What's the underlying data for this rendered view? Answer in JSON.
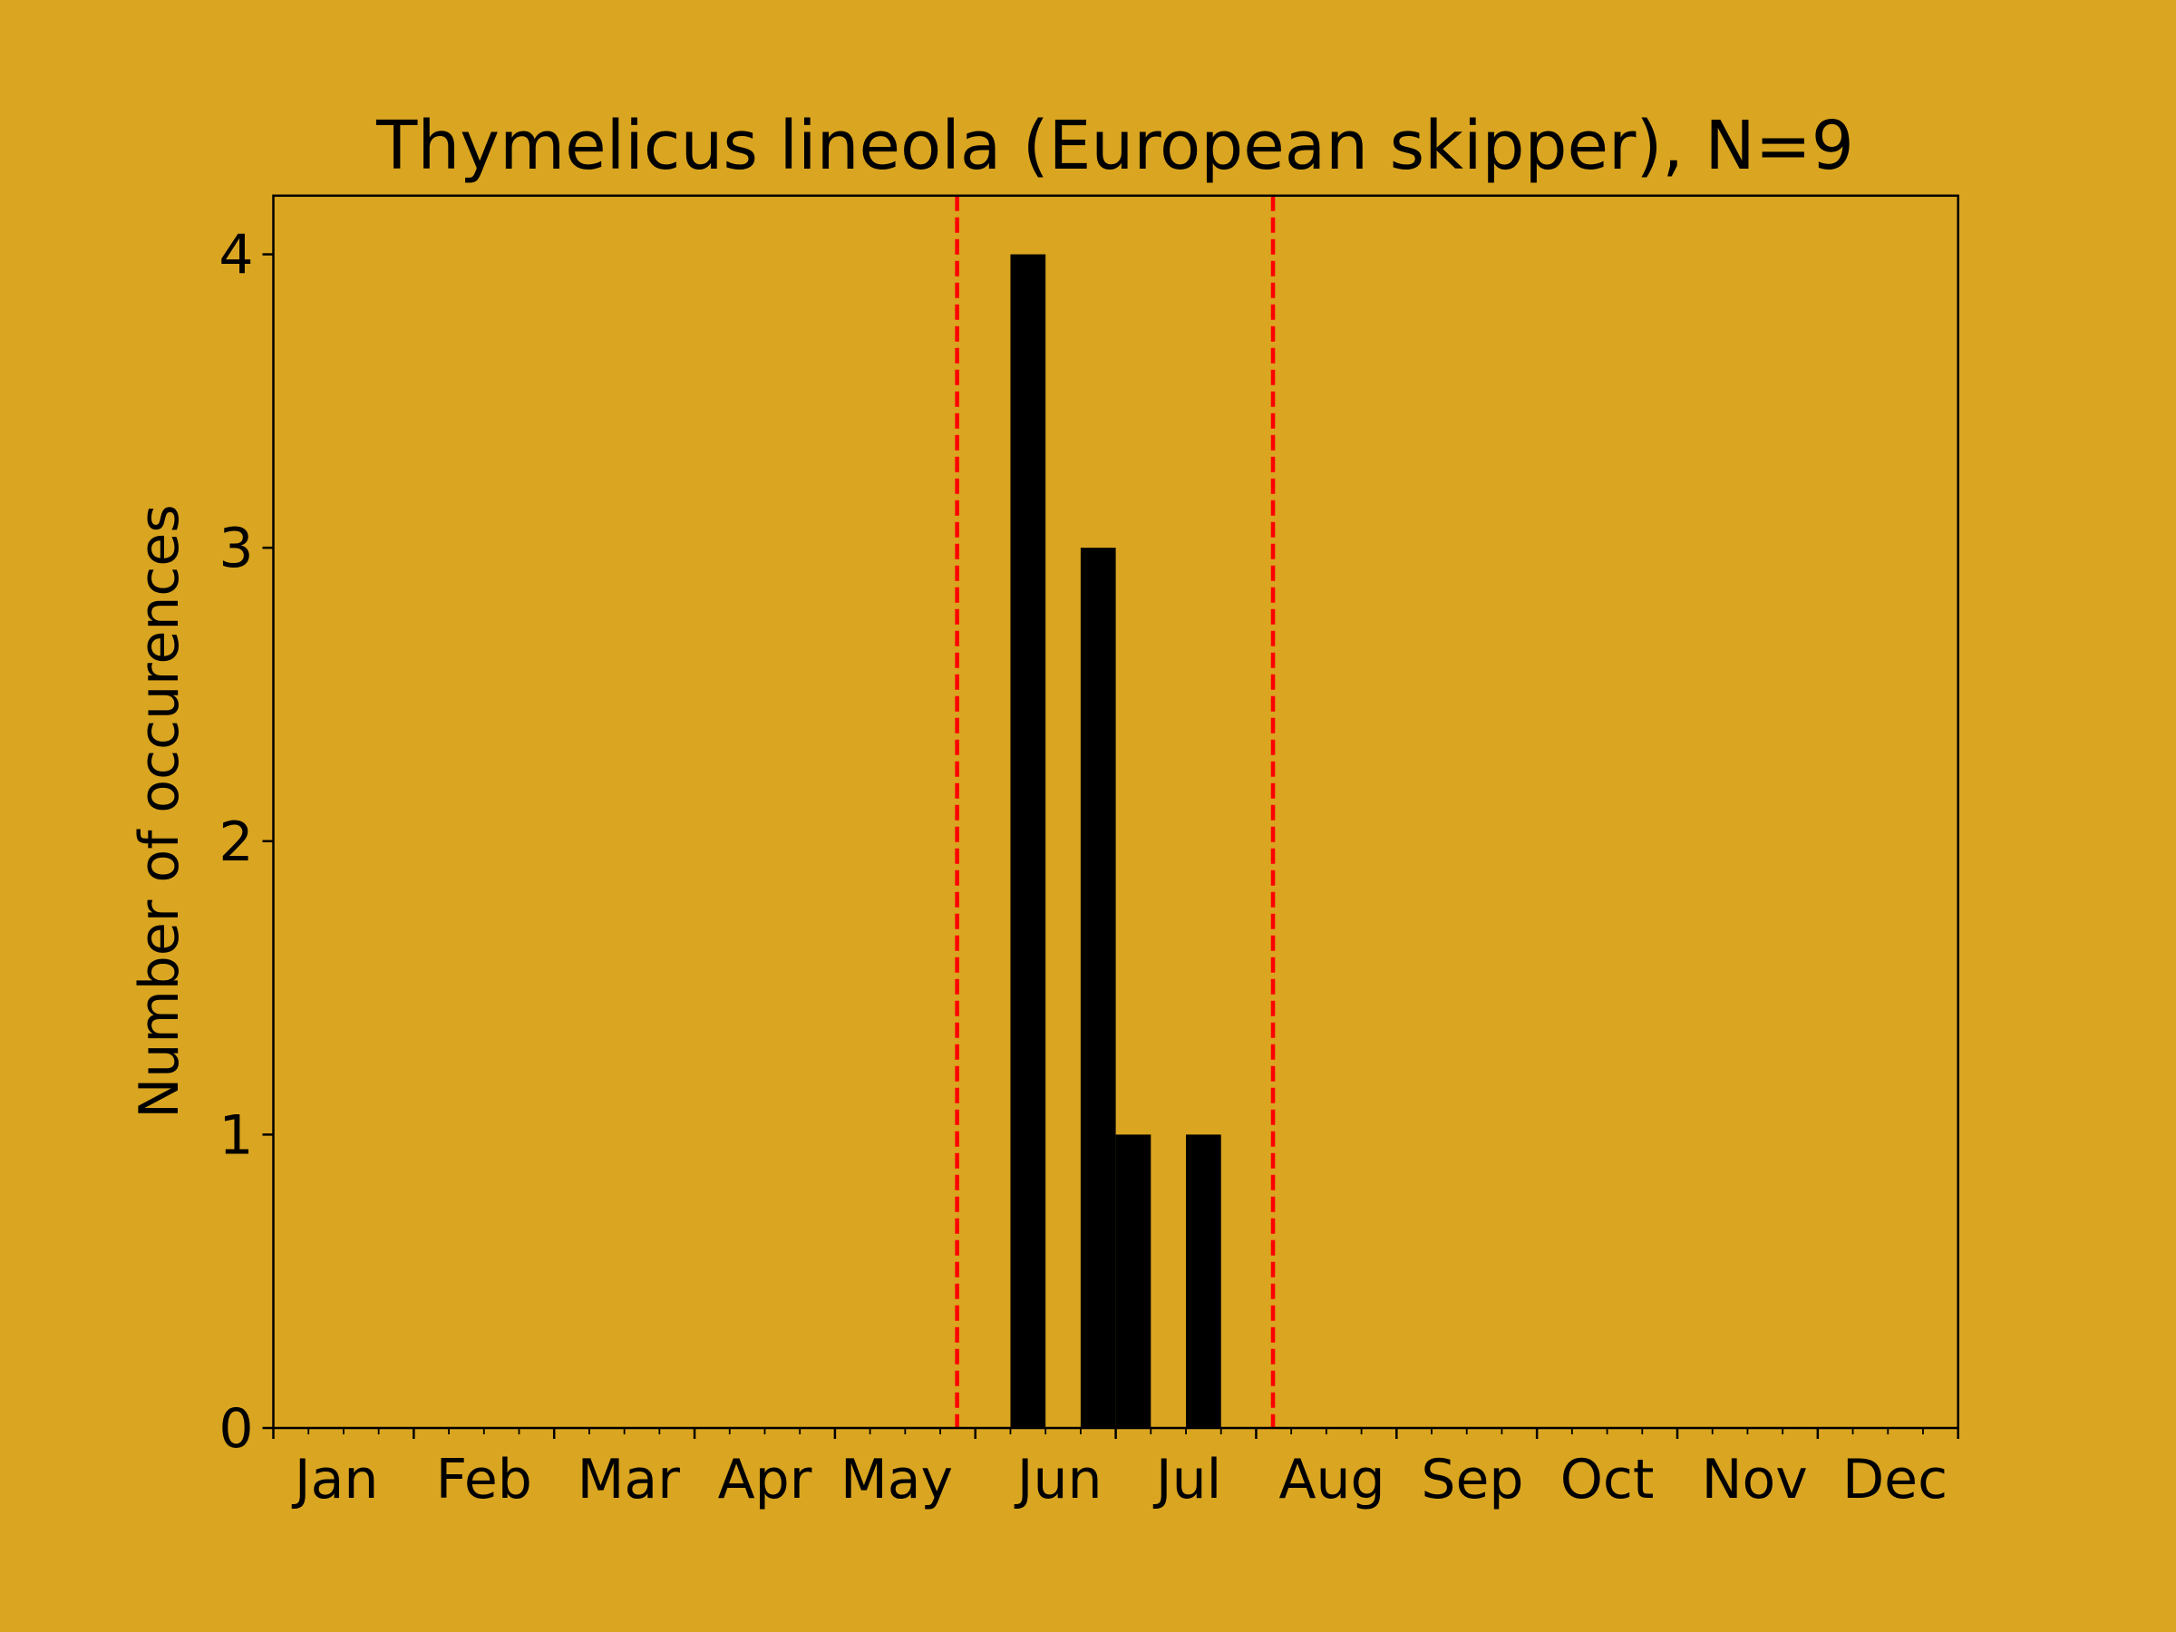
{
  "chart_data": {
    "type": "histogram",
    "title": "Thymelicus lineola (European skipper), N=9",
    "ylabel": "Number of occurences",
    "bins": [
      5.25,
      5.5,
      5.75,
      6,
      6.25,
      6.5,
      6.75
    ],
    "values": [
      4,
      0,
      3,
      1,
      0,
      1
    ],
    "color": "#000000",
    "background": "#daa520",
    "xlim": [
      0,
      12
    ],
    "xticks": [
      {
        "value": 0.45,
        "label": "Jan"
      },
      {
        "value": 1.5,
        "label": "Feb"
      },
      {
        "value": 2.53,
        "label": "Mar"
      },
      {
        "value": 3.5,
        "label": "Apr"
      },
      {
        "value": 4.44,
        "label": "May"
      },
      {
        "value": 5.6,
        "label": "Jun"
      },
      {
        "value": 6.52,
        "label": "Jul"
      },
      {
        "value": 7.54,
        "label": "Aug"
      },
      {
        "value": 8.54,
        "label": "Sep"
      },
      {
        "value": 9.5,
        "label": "Oct"
      },
      {
        "value": 10.55,
        "label": "Nov"
      },
      {
        "value": 11.55,
        "label": "Dec"
      }
    ],
    "xmajor_ticks": [
      0,
      1,
      2,
      3,
      4,
      5,
      6,
      7,
      8,
      9,
      10,
      11,
      12
    ],
    "xminor_ticks": [
      0.25,
      0.5,
      0.75,
      1.25,
      1.5,
      1.75,
      2.25,
      2.5,
      2.75,
      3.25,
      3.5,
      3.75,
      4.25,
      4.5,
      4.75,
      5.25,
      5.5,
      5.75,
      6.25,
      6.5,
      6.75,
      7.25,
      7.5,
      7.75,
      8.25,
      8.5,
      8.75,
      9.25,
      9.5,
      9.75,
      10.25,
      10.5,
      10.75,
      11.25,
      11.5,
      11.75
    ],
    "ylim": [
      0,
      4.2
    ],
    "yticks": [
      0,
      1,
      2,
      3,
      4
    ],
    "vlines": [
      {
        "x": 4.87,
        "color": "#ff0000",
        "style": "dashed"
      },
      {
        "x": 7.12,
        "color": "#ff0000",
        "style": "dashed"
      }
    ]
  }
}
